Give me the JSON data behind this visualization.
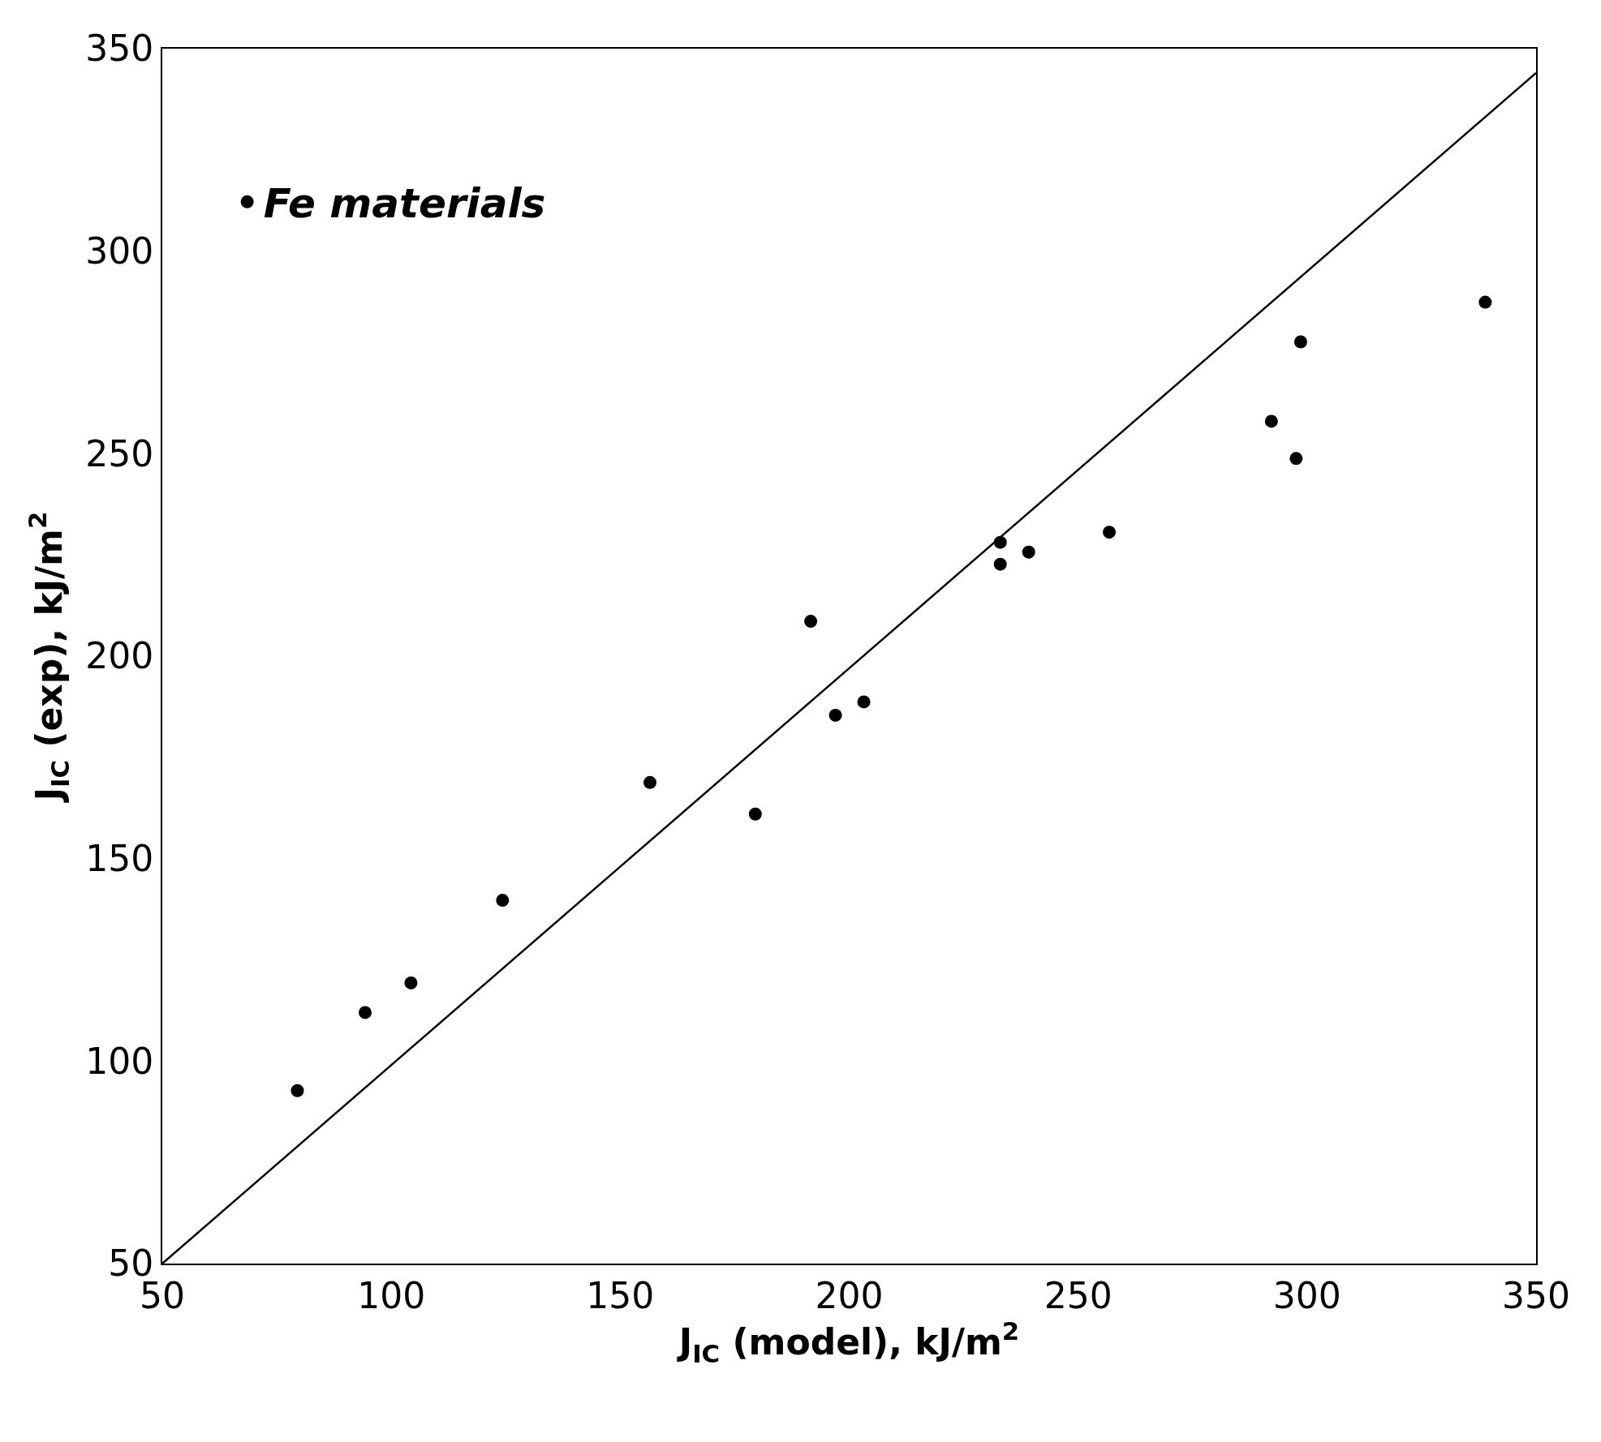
{
  "chart_data": {
    "type": "scatter",
    "xlabel": "J$_{IC}$ (model), kJ/m$^{2}$",
    "ylabel": "J$_{IC}$ (exp), kJ/m$^{2}$",
    "xlim": [
      50,
      350
    ],
    "ylim": [
      50,
      350
    ],
    "xticks": [
      50,
      100,
      150,
      200,
      250,
      300,
      350
    ],
    "yticks": [
      50,
      100,
      150,
      200,
      250,
      300,
      350
    ],
    "grid": false,
    "legend": "top left",
    "marker": "circle",
    "series": [
      {
        "name": "Fe materials",
        "color": "#000000",
        "x": [
          79.5,
          94.3,
          104.3,
          124.3,
          156.5,
          179.5,
          191.6,
          197,
          203.2,
          233,
          233,
          239.2,
          256.8,
          292.2,
          298.6,
          297.6,
          338.9
        ],
        "values": [
          92.7,
          112,
          119.3,
          139.7,
          168.8,
          161,
          208.6,
          185.4,
          188.7,
          228.1,
          222.7,
          225.7,
          230.6,
          258,
          277.6,
          248.8,
          287.4
        ]
      },
      {
        "type": "line",
        "color": "#000000",
        "line_style": "solid",
        "marker": "none",
        "x": [
          50,
          350
        ],
        "values": [
          50,
          344
        ]
      }
    ]
  }
}
